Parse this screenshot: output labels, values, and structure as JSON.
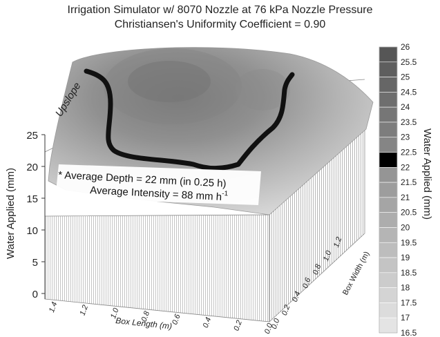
{
  "chart_data": {
    "type": "surface",
    "title": "Irrigation Simulator w/ 8070 Nozzle at 76 kPa Nozzle Pressure",
    "subtitle": "Christiansen's Uniformity Coefficient = 0.90",
    "zlabel": "Water Applied (mm)",
    "xlabel": "Box Length (m)",
    "ylabel": "Box Width (m)",
    "colorbar_label": "Water Applied (mm)",
    "zlim": [
      0,
      25
    ],
    "z_ticks": [
      "0",
      "5",
      "10",
      "15",
      "20",
      "25"
    ],
    "x_ticks": [
      "1.4",
      "1.2",
      "1.0",
      "0.8",
      "0.6",
      "0.4",
      "0.2",
      "0.0"
    ],
    "y_ticks": [
      "0.0",
      "0.2",
      "0.4",
      "0.6",
      "0.8",
      "1.0",
      "1.2"
    ],
    "colorbar_ticks": [
      "26",
      "25.5",
      "25",
      "24.5",
      "24",
      "23.5",
      "23",
      "22.5",
      "22",
      "21.5",
      "21",
      "20.5",
      "20",
      "19.5",
      "19",
      "18.5",
      "18",
      "17.5",
      "17",
      "16.5"
    ],
    "highlighted_band": [
      22,
      22.5
    ],
    "annotations": {
      "upslope": "Upslope",
      "average_depth": "* Average Depth = 22 mm (in 0.25 h)",
      "average_intensity_prefix": "Average Intensity = 88 mm h",
      "average_intensity_exponent": "-1"
    }
  },
  "colors": {
    "background": "#ffffff",
    "contour_line": "#111111",
    "highlight_band": "#000000"
  }
}
